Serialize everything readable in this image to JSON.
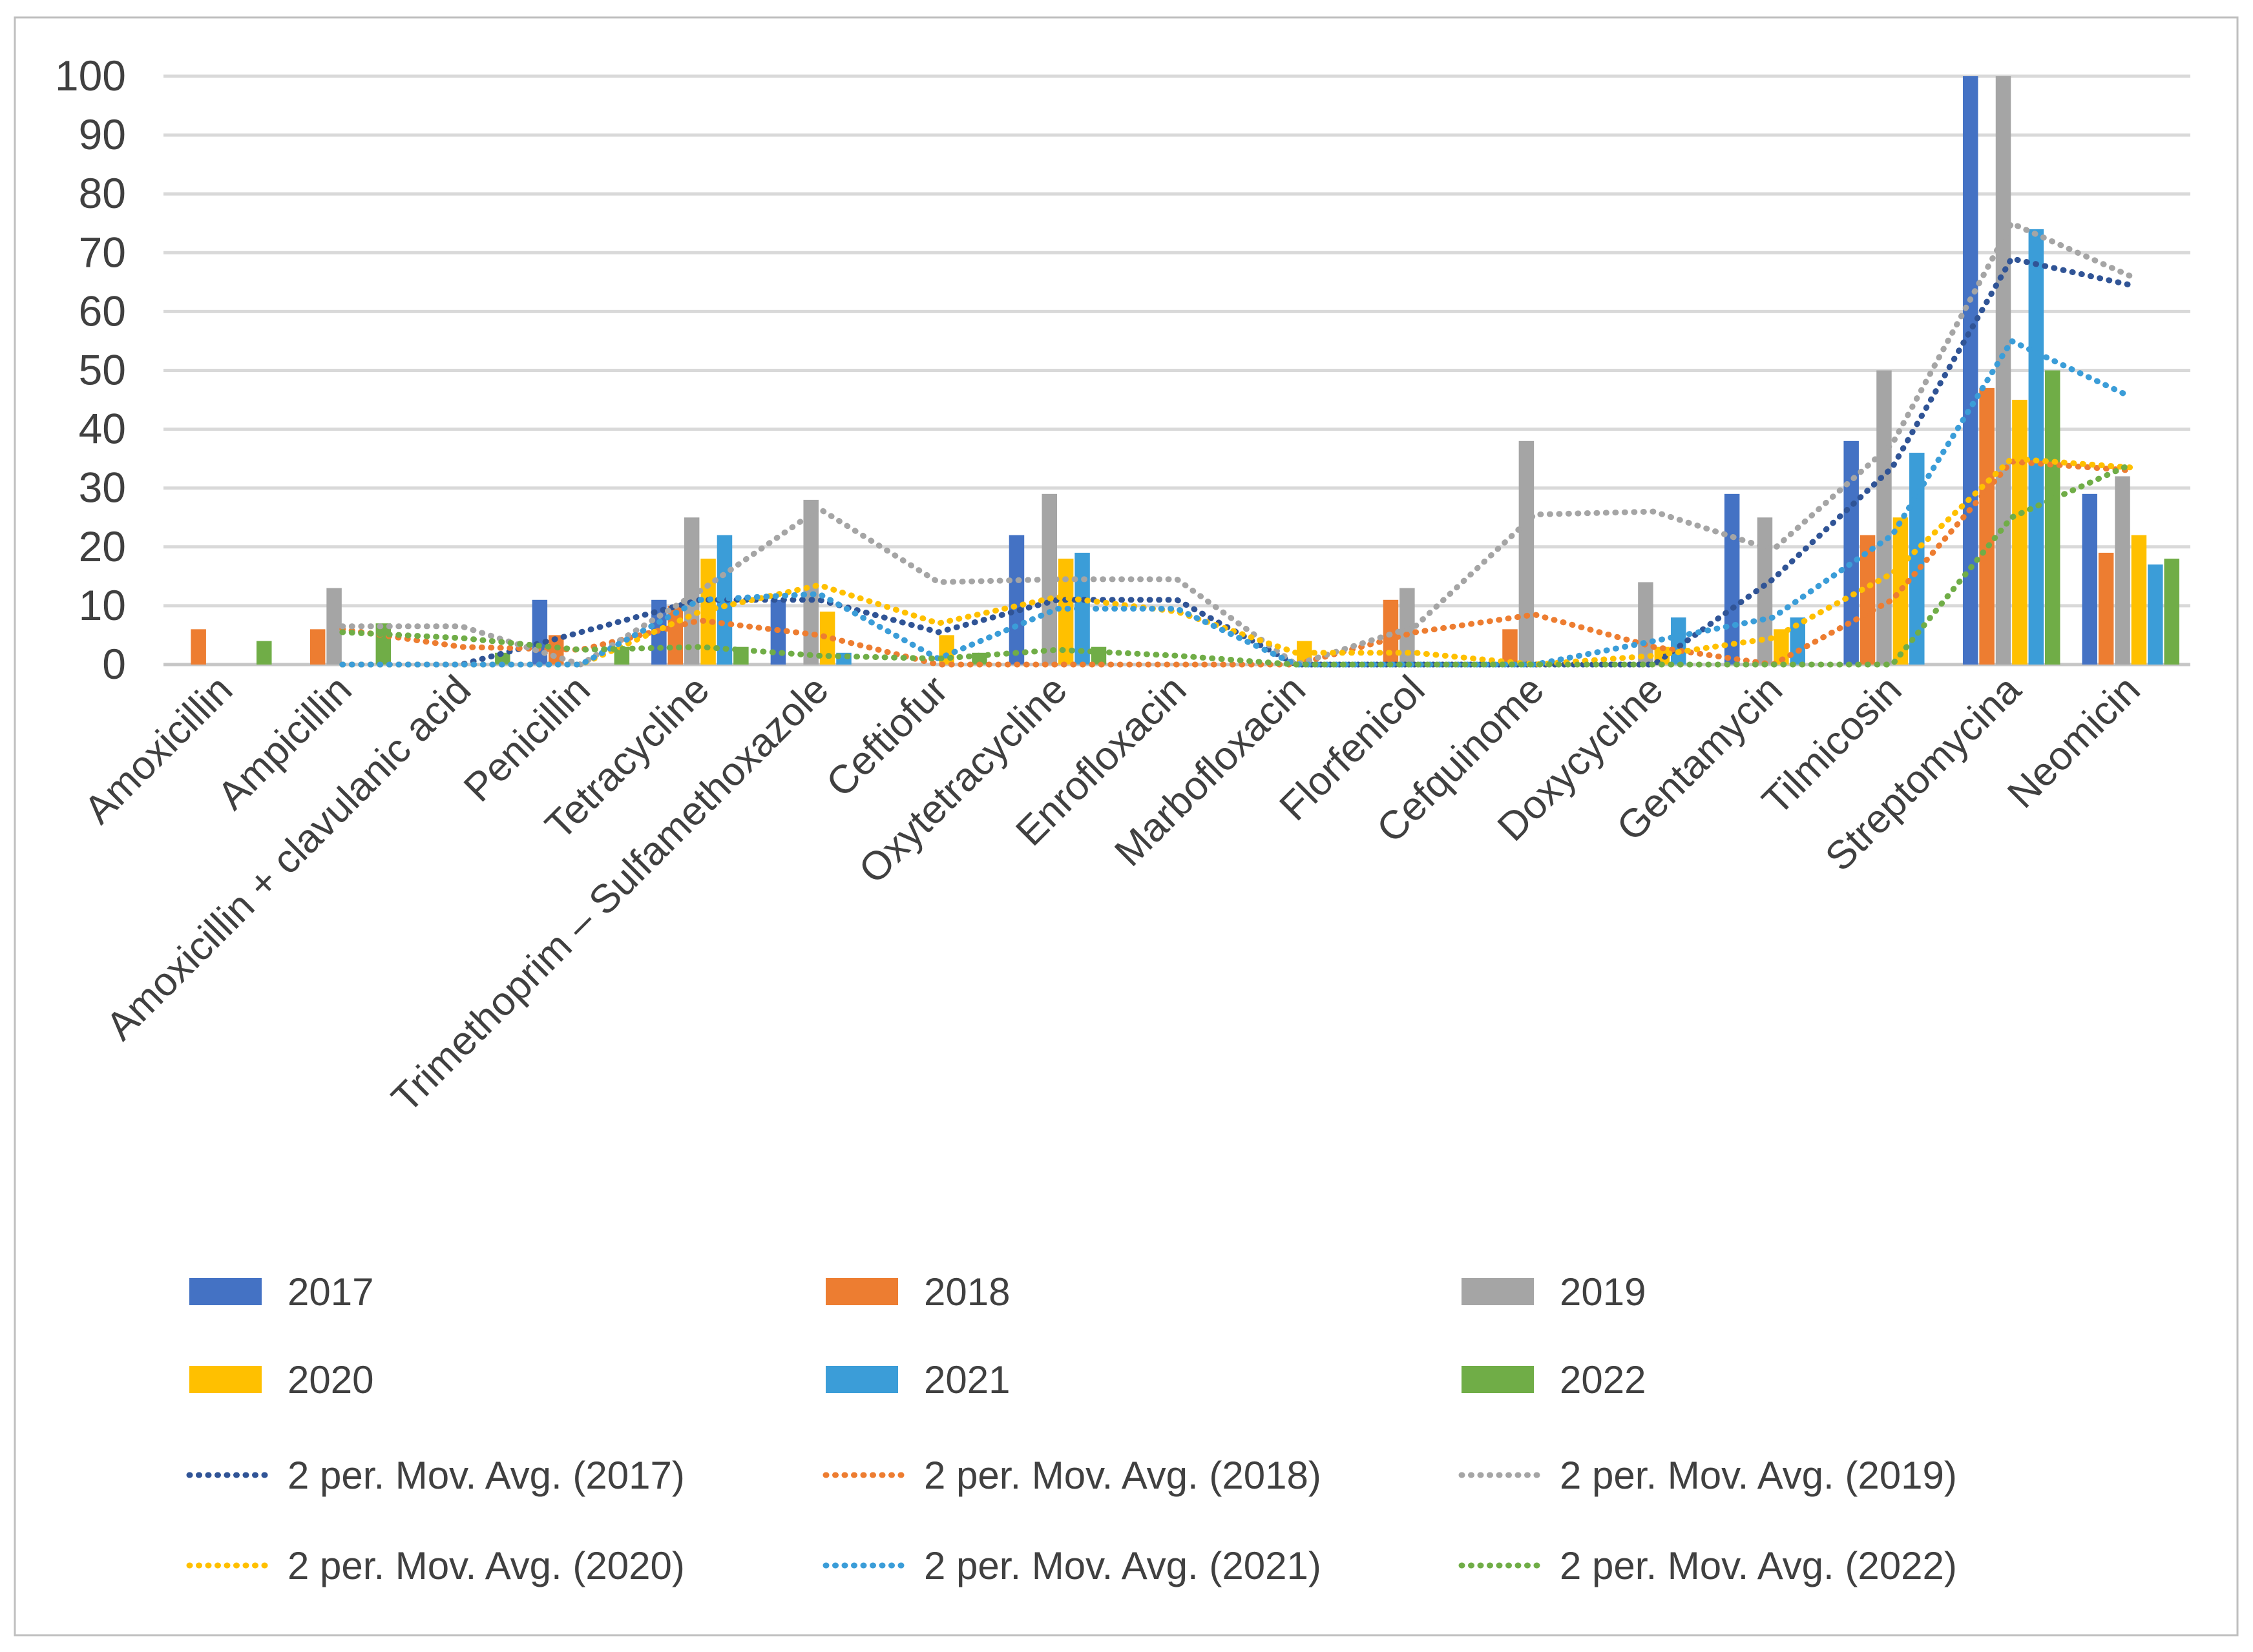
{
  "chart_data": {
    "type": "bar",
    "title": "",
    "xlabel": "",
    "ylabel": "",
    "ylim": [
      0,
      100
    ],
    "yticks": [
      0,
      10,
      20,
      30,
      40,
      50,
      60,
      70,
      80,
      90,
      100
    ],
    "grid": true,
    "legend_position": "bottom",
    "categories": [
      "Amoxicillin",
      "Ampicillin",
      "Amoxicillin + clavulanic acid",
      "Penicillin",
      "Tetracycline",
      "Trimethoprim – Sulfamethoxazole",
      "Ceftiofur",
      "Oxytetracycline",
      "Enrofloxacin",
      "Marbofloxacin",
      "Florfenicol",
      "Cefquinome",
      "Doxycycline",
      "Gentamycin",
      "Tilmicosin",
      "Streptomycina",
      "Neomicin"
    ],
    "series": [
      {
        "name": "2017",
        "color": "#4472C4",
        "values": [
          0,
          0,
          0,
          11,
          11,
          11,
          0,
          22,
          0,
          0,
          0,
          0,
          0,
          29,
          38,
          100,
          29
        ]
      },
      {
        "name": "2018",
        "color": "#ED7D31",
        "values": [
          6,
          6,
          0,
          5,
          10,
          0,
          0,
          0,
          0,
          0,
          11,
          6,
          0,
          0,
          22,
          47,
          19
        ]
      },
      {
        "name": "2019",
        "color": "#A5A5A5",
        "values": [
          0,
          13,
          0,
          0,
          25,
          28,
          0,
          29,
          0,
          0,
          13,
          38,
          14,
          25,
          50,
          100,
          32
        ]
      },
      {
        "name": "2020",
        "color": "#FFC000",
        "values": [
          0,
          0,
          0,
          0,
          18,
          9,
          5,
          18,
          0,
          4,
          0,
          0,
          3,
          6,
          25,
          45,
          22
        ]
      },
      {
        "name": "2021",
        "color": "#3B9DD8",
        "values": [
          0,
          0,
          0,
          0,
          22,
          2,
          0,
          19,
          0,
          0,
          0,
          0,
          8,
          8,
          36,
          74,
          17
        ]
      },
      {
        "name": "2022",
        "color": "#70AD47",
        "values": [
          4,
          7,
          2,
          3,
          3,
          0,
          2,
          3,
          0,
          0,
          0,
          0,
          0,
          0,
          0,
          50,
          18
        ]
      }
    ],
    "trendlines": [
      {
        "label": "2 per. Mov. Avg. (2017)",
        "series": "2017",
        "period": 2,
        "color": "#305496"
      },
      {
        "label": "2 per. Mov. Avg. (2018)",
        "series": "2018",
        "period": 2,
        "color": "#ED7D31"
      },
      {
        "label": "2 per. Mov. Avg. (2019)",
        "series": "2019",
        "period": 2,
        "color": "#A5A5A5"
      },
      {
        "label": "2 per. Mov. Avg. (2020)",
        "series": "2020",
        "period": 2,
        "color": "#FFC000"
      },
      {
        "label": "2 per. Mov. Avg. (2021)",
        "series": "2021",
        "period": 2,
        "color": "#3B9DD8"
      },
      {
        "label": "2 per. Mov. Avg. (2022)",
        "series": "2022",
        "period": 2,
        "color": "#70AD47"
      }
    ]
  },
  "colors": {
    "background": "#FFFFFF",
    "frame": "#BFBFBF",
    "gridline": "#D9D9D9",
    "zero_line": "#C6C6C6",
    "label_text": "#404040"
  }
}
